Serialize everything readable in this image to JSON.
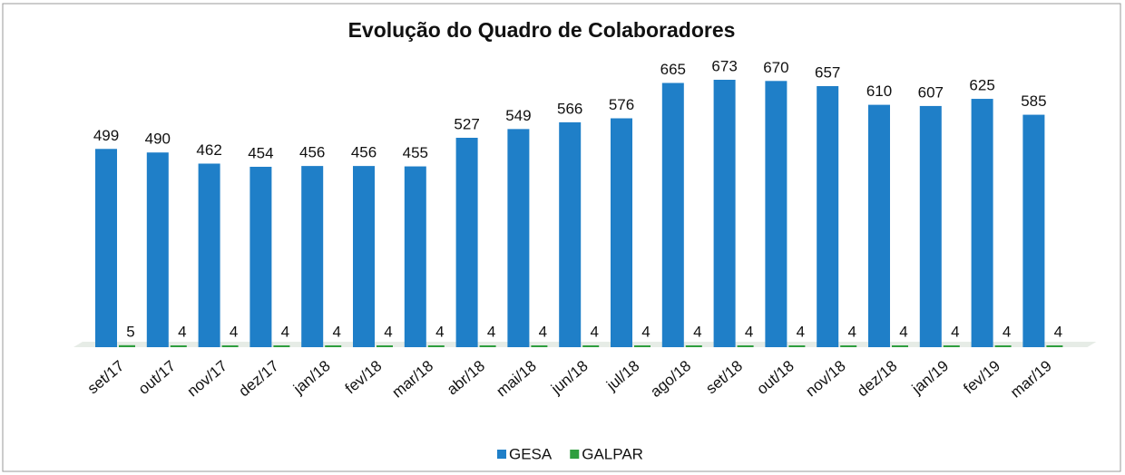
{
  "chart_data": {
    "type": "bar",
    "title": "Evolução do Quadro de Colaboradores",
    "categories": [
      "set/17",
      "out/17",
      "nov/17",
      "dez/17",
      "jan/18",
      "fev/18",
      "mar/18",
      "abr/18",
      "mai/18",
      "jun/18",
      "jul/18",
      "ago/18",
      "set/18",
      "out/18",
      "nov/18",
      "dez/18",
      "jan/19",
      "fev/19",
      "mar/19"
    ],
    "series": [
      {
        "name": "GESA",
        "color": "#1f7fc8",
        "values": [
          499,
          490,
          462,
          454,
          456,
          456,
          455,
          527,
          549,
          566,
          576,
          665,
          673,
          670,
          657,
          610,
          607,
          625,
          585
        ]
      },
      {
        "name": "GALPAR",
        "color": "#2e9e3e",
        "values": [
          5,
          4,
          4,
          4,
          4,
          4,
          4,
          4,
          4,
          4,
          4,
          4,
          4,
          4,
          4,
          4,
          4,
          4,
          4
        ]
      }
    ],
    "legend": "bottom"
  }
}
